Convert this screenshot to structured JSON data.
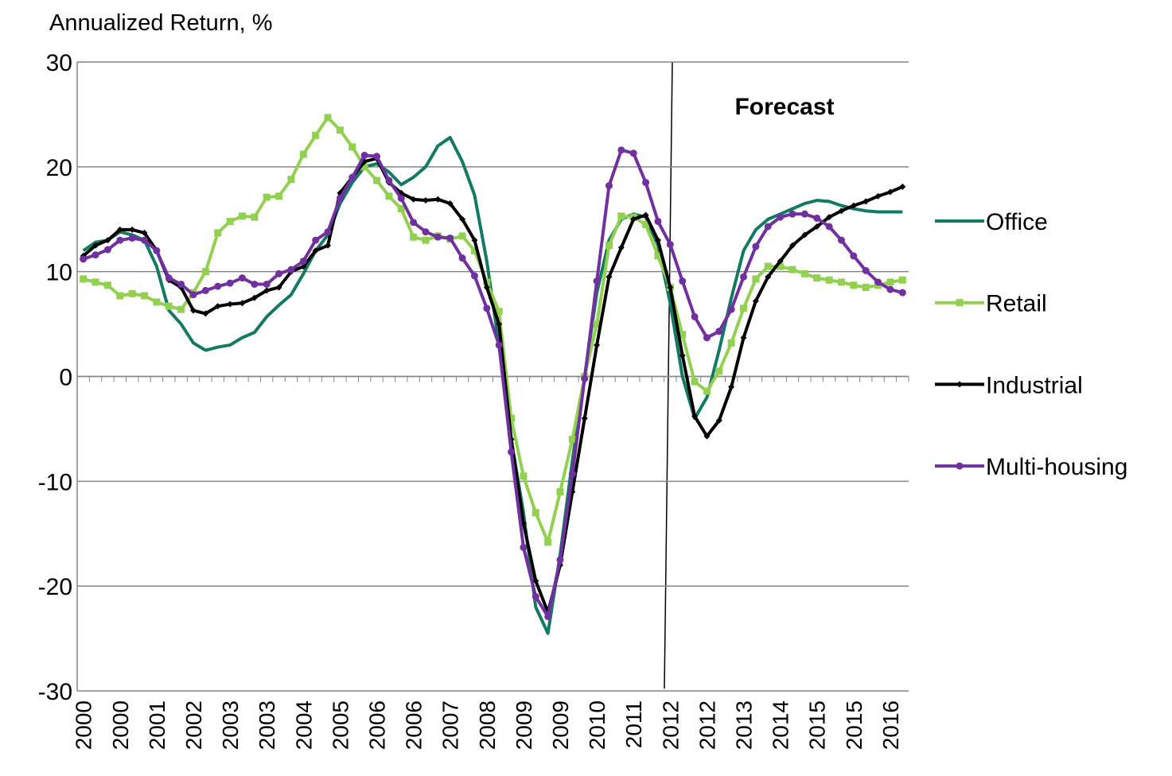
{
  "chart_data": {
    "type": "line",
    "y_axis_label": "Annualized Return, %",
    "annotation": "Forecast",
    "categories": [
      "2000",
      null,
      null,
      "2000",
      null,
      null,
      "2001",
      null,
      null,
      "2002",
      null,
      null,
      "2003",
      null,
      null,
      "2003",
      null,
      null,
      "2004",
      null,
      null,
      "2005",
      null,
      null,
      "2006",
      null,
      null,
      "2006",
      null,
      null,
      "2007",
      null,
      null,
      "2008",
      null,
      null,
      "2009",
      null,
      null,
      "2009",
      null,
      null,
      "2010",
      null,
      null,
      "2011",
      null,
      null,
      "2012",
      null,
      null,
      "2012",
      null,
      null,
      "2013",
      null,
      null,
      "2014",
      null,
      null,
      "2015",
      null,
      null,
      "2015",
      null,
      null,
      "2016",
      null
    ],
    "series": [
      {
        "name": "Office",
        "color": "#127a62",
        "marker": "none",
        "values": [
          12,
          12.8,
          13,
          13.8,
          13.5,
          13,
          10.5,
          6.3,
          5,
          3.2,
          2.5,
          2.8,
          3,
          3.7,
          4.2,
          5.7,
          6.8,
          7.8,
          9.8,
          12,
          13.5,
          16.5,
          18.5,
          20,
          20.3,
          19.5,
          18.3,
          19,
          20,
          22,
          22.8,
          20.5,
          17.3,
          11,
          3,
          -6,
          -13,
          -22,
          -24.5,
          -17,
          -8,
          0,
          8,
          13,
          15,
          15.5,
          15.2,
          12.5,
          7,
          0,
          -4,
          -2,
          2.5,
          7.5,
          12,
          14,
          15,
          15.5,
          16,
          16.5,
          16.8,
          16.7,
          16.3,
          16,
          15.8,
          15.7,
          15.7,
          15.7
        ]
      },
      {
        "name": "Retail",
        "color": "#92d050",
        "marker": "square",
        "values": [
          9.3,
          9,
          8.7,
          7.7,
          7.9,
          7.7,
          7.1,
          6.7,
          6.4,
          8,
          10,
          13.7,
          14.8,
          15.3,
          15.2,
          17.1,
          17.2,
          18.8,
          21.2,
          23,
          24.7,
          23.5,
          21.9,
          20,
          18.7,
          17.2,
          16,
          13.3,
          13,
          13.4,
          13.1,
          13.4,
          12,
          9,
          6.2,
          -4,
          -9.5,
          -13,
          -15.8,
          -11,
          -6,
          0,
          5,
          12.5,
          15.3,
          15.2,
          14.5,
          11.5,
          8.5,
          4,
          -0.5,
          -1.4,
          0.5,
          3.2,
          6.5,
          9.3,
          10.5,
          10.5,
          10.2,
          9.8,
          9.4,
          9.2,
          9,
          8.7,
          8.5,
          8.7,
          9,
          9.2
        ]
      },
      {
        "name": "Industrial",
        "color": "#000000",
        "marker": "diamond",
        "values": [
          11.5,
          12.5,
          13,
          14,
          14,
          13.7,
          12,
          9.2,
          8.5,
          6.3,
          6,
          6.7,
          6.9,
          7,
          7.5,
          8.2,
          8.5,
          10,
          10.5,
          12,
          12.5,
          17.5,
          19,
          20.5,
          20.8,
          18.5,
          17.5,
          16.9,
          16.8,
          16.9,
          16.5,
          15,
          13,
          8.5,
          5,
          -6,
          -14,
          -19.5,
          -22.5,
          -18,
          -11,
          -4,
          3,
          9.5,
          12.3,
          15,
          15.4,
          13,
          8.5,
          2,
          -3.8,
          -5.7,
          -4.2,
          -1,
          3.7,
          7.2,
          9.5,
          11,
          12.5,
          13.5,
          14.3,
          15.2,
          15.8,
          16.3,
          16.7,
          17.2,
          17.6,
          18.1
        ]
      },
      {
        "name": "Multi-housing",
        "color": "#7030a0",
        "marker": "circle",
        "values": [
          11.2,
          11.6,
          12.1,
          13,
          13.2,
          13,
          12,
          9.4,
          8.8,
          7.8,
          8.2,
          8.6,
          8.9,
          9.4,
          8.8,
          8.8,
          9.8,
          10.2,
          11,
          13,
          13.8,
          17,
          19,
          21.1,
          21,
          18.7,
          17,
          14.7,
          13.8,
          13.3,
          13.2,
          11.3,
          9.6,
          6.5,
          3,
          -7.2,
          -16.3,
          -21,
          -22.9,
          -17.5,
          -9.3,
          -0.2,
          9.1,
          18.2,
          21.6,
          21.3,
          18.5,
          14.8,
          12.6,
          9.1,
          5.7,
          3.7,
          4.3,
          6.4,
          9.5,
          12.4,
          14.3,
          15.2,
          15.5,
          15.5,
          15.1,
          14.3,
          13,
          11.5,
          10.1,
          9,
          8.3,
          8
        ]
      }
    ],
    "ylim": [
      -30,
      30
    ],
    "yticks": [
      -30,
      -20,
      -10,
      0,
      10,
      20,
      30
    ],
    "grid": true,
    "legend": "right"
  }
}
